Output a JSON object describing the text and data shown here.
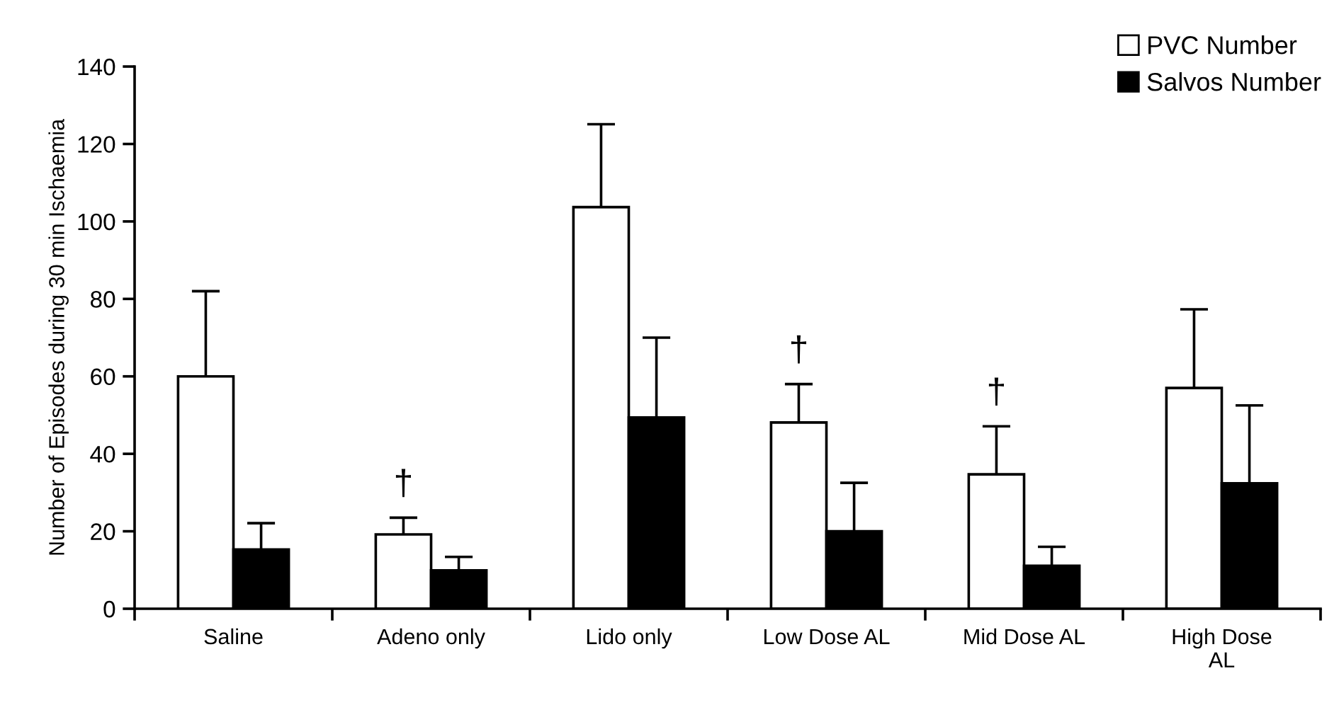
{
  "chart_data": {
    "type": "bar",
    "ylabel": "Number of Episodes during 30 min Ischaemia",
    "categories": [
      "Saline",
      "Adeno only",
      "Lido only",
      "Low Dose AL",
      "Mid Dose AL",
      "High Dose\nAL"
    ],
    "series": [
      {
        "name": "PVC Number",
        "color": "#ffffff",
        "values": [
          60,
          19.2,
          103.7,
          48.1,
          34.7,
          57.0
        ],
        "errors": [
          [
            60,
            82
          ],
          [
            19.2,
            23.5
          ],
          [
            103.7,
            125.1
          ],
          [
            48.1,
            58
          ],
          [
            34.7,
            47.1
          ],
          [
            57.0,
            77.3
          ]
        ],
        "value_labels": [
          null,
          "†",
          null,
          "†",
          "†",
          null
        ]
      },
      {
        "name": "Salvos Number",
        "color": "#000000",
        "values": [
          15.3,
          9.9,
          49.4,
          20.0,
          11.1,
          32.4
        ],
        "errors": [
          [
            15.3,
            22.1
          ],
          [
            9.9,
            13.4
          ],
          [
            49.4,
            70.0
          ],
          [
            20.0,
            32.5
          ],
          [
            11.1,
            16.0
          ],
          [
            32.4,
            52.5
          ]
        ]
      }
    ],
    "ylim": [
      0,
      140
    ],
    "yticks": [
      0,
      20,
      40,
      60,
      80,
      100,
      120,
      140
    ],
    "grid": false,
    "legend": "top right"
  }
}
